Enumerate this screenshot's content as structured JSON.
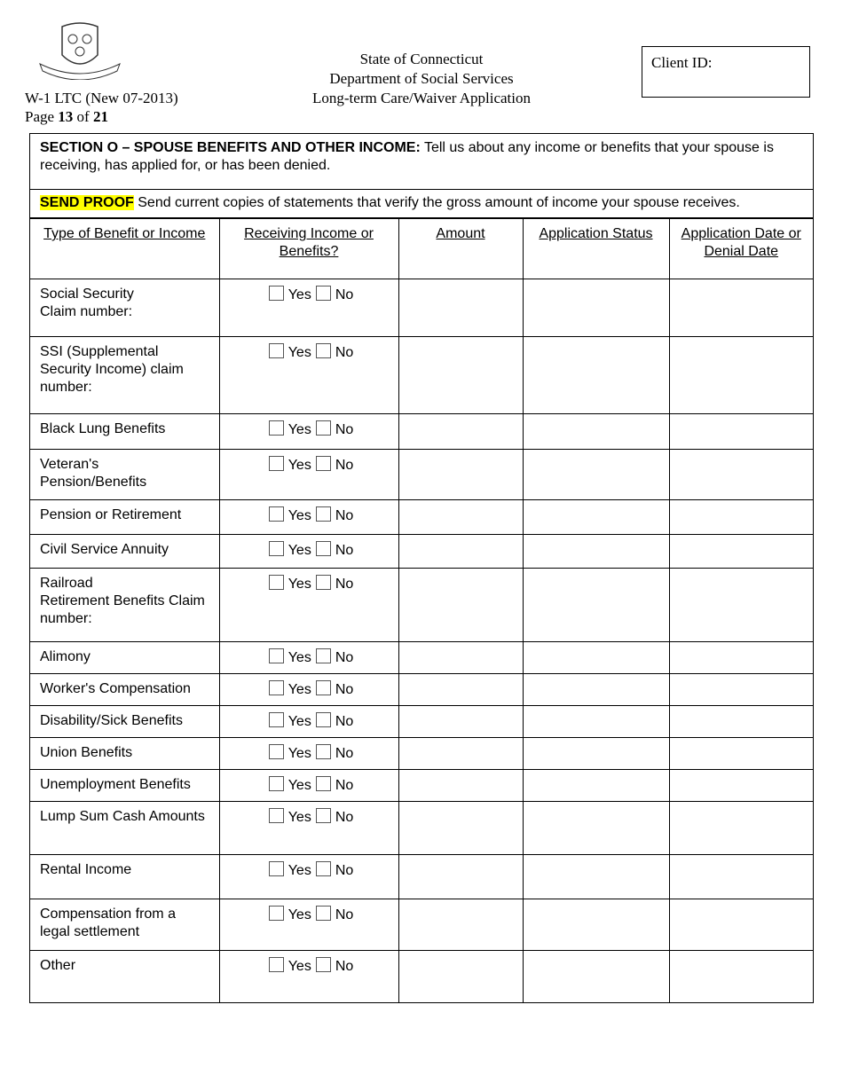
{
  "header": {
    "form_id": "W-1 LTC (New 07-2013)",
    "page_label": "Page",
    "page": "13",
    "of": "of",
    "total": "21",
    "title_lines": [
      "State of Connecticut",
      "Department of Social Services",
      "Long-term Care/Waiver Application"
    ],
    "client_id_label": "Client ID:",
    "logo": "connecticut-state-seal"
  },
  "section": {
    "heading_bold": "SECTION O – SPOUSE BENEFITS AND OTHER INCOME:",
    "heading_text": " Tell us about any income or benefits that your spouse is receiving, has applied for, or has been denied.",
    "proof_label": "SEND PROOF",
    "proof_text": " Send current copies of statements that verify the gross amount of income your spouse receives.",
    "highlight_color": "#ffff00"
  },
  "table": {
    "columns": [
      "Type of Benefit or Income",
      "Receiving Income or Benefits?",
      "Amount",
      "Application Status",
      "Application Date or Denial Date"
    ],
    "yes": "Yes",
    "no": "No",
    "rows": [
      {
        "label": "Social Security\nClaim number:"
      },
      {
        "label": "SSI (Supplemental Security Income) claim number:"
      },
      {
        "label": "Black Lung Benefits"
      },
      {
        "label": "Veteran's Pension/Benefits"
      },
      {
        "label": "Pension or Retirement"
      },
      {
        "label": "Civil Service Annuity"
      },
      {
        "label": "Railroad\nRetirement Benefits Claim number:"
      },
      {
        "label": "Alimony"
      },
      {
        "label": "Worker's Compensation"
      },
      {
        "label": "Disability/Sick Benefits"
      },
      {
        "label": "Union Benefits"
      },
      {
        "label": "Unemployment Benefits"
      },
      {
        "label": "Lump Sum Cash Amounts"
      },
      {
        "label": "Rental Income"
      },
      {
        "label": "Compensation from a legal settlement"
      },
      {
        "label": "Other"
      }
    ]
  }
}
